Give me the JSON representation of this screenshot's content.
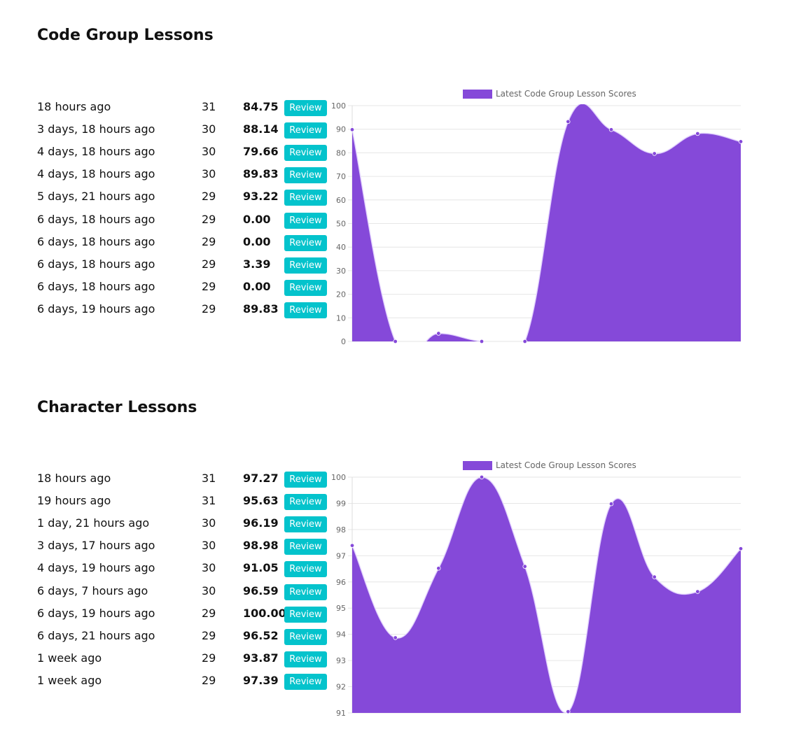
{
  "sections": [
    {
      "title": "Code Group Lessons",
      "rows": [
        {
          "when": "18 hours ago",
          "count": "31",
          "score": "84.75",
          "button": "Review"
        },
        {
          "when": "3 days, 18 hours ago",
          "count": "30",
          "score": "88.14",
          "button": "Review"
        },
        {
          "when": "4 days, 18 hours ago",
          "count": "30",
          "score": "79.66",
          "button": "Review"
        },
        {
          "when": "4 days, 18 hours ago",
          "count": "30",
          "score": "89.83",
          "button": "Review"
        },
        {
          "when": "5 days, 21 hours ago",
          "count": "29",
          "score": "93.22",
          "button": "Review"
        },
        {
          "when": "6 days, 18 hours ago",
          "count": "29",
          "score": "0.00",
          "button": "Review"
        },
        {
          "when": "6 days, 18 hours ago",
          "count": "29",
          "score": "0.00",
          "button": "Review"
        },
        {
          "when": "6 days, 18 hours ago",
          "count": "29",
          "score": "3.39",
          "button": "Review"
        },
        {
          "when": "6 days, 18 hours ago",
          "count": "29",
          "score": "0.00",
          "button": "Review"
        },
        {
          "when": "6 days, 19 hours ago",
          "count": "29",
          "score": "89.83",
          "button": "Review"
        }
      ]
    },
    {
      "title": "Character Lessons",
      "rows": [
        {
          "when": "18 hours ago",
          "count": "31",
          "score": "97.27",
          "button": "Review"
        },
        {
          "when": "19 hours ago",
          "count": "31",
          "score": "95.63",
          "button": "Review"
        },
        {
          "when": "1 day, 21 hours ago",
          "count": "30",
          "score": "96.19",
          "button": "Review"
        },
        {
          "when": "3 days, 17 hours ago",
          "count": "30",
          "score": "98.98",
          "button": "Review"
        },
        {
          "when": "4 days, 19 hours ago",
          "count": "30",
          "score": "91.05",
          "button": "Review"
        },
        {
          "when": "6 days, 7 hours ago",
          "count": "30",
          "score": "96.59",
          "button": "Review"
        },
        {
          "when": "6 days, 19 hours ago",
          "count": "29",
          "score": "100.00",
          "button": "Review"
        },
        {
          "when": "6 days, 21 hours ago",
          "count": "29",
          "score": "96.52",
          "button": "Review"
        },
        {
          "when": "1 week ago",
          "count": "29",
          "score": "93.87",
          "button": "Review"
        },
        {
          "when": "1 week ago",
          "count": "29",
          "score": "97.39",
          "button": "Review"
        }
      ]
    }
  ],
  "chart_data": [
    {
      "type": "area",
      "legend": [
        "Latest Code Group Lesson Scores"
      ],
      "legend_position": "top",
      "series": [
        {
          "name": "Latest Code Group Lesson Scores",
          "values": [
            89.83,
            0.0,
            3.39,
            0.0,
            0.0,
            93.22,
            89.83,
            79.66,
            88.14,
            84.75
          ]
        }
      ],
      "ylim": [
        0,
        100
      ],
      "yticks": [
        0,
        10,
        20,
        30,
        40,
        50,
        60,
        70,
        80,
        90,
        100
      ],
      "grid": true,
      "color": "#8549d9"
    },
    {
      "type": "area",
      "legend": [
        "Latest Code Group Lesson Scores"
      ],
      "legend_position": "top",
      "series": [
        {
          "name": "Latest Code Group Lesson Scores",
          "values": [
            97.39,
            93.87,
            96.52,
            100.0,
            96.59,
            91.05,
            98.98,
            96.19,
            95.63,
            97.27
          ]
        }
      ],
      "ylim": [
        91,
        100
      ],
      "yticks": [
        91,
        92,
        93,
        94,
        95,
        96,
        97,
        98,
        99,
        100
      ],
      "grid": true,
      "color": "#8549d9"
    }
  ]
}
